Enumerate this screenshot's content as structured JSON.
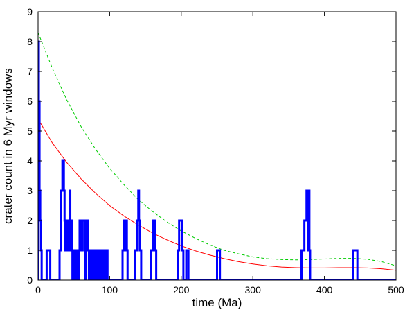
{
  "chart_data": {
    "type": "line",
    "xlabel": "time (Ma)",
    "ylabel": "crater count in 6 Myr windows",
    "xlim": [
      0,
      500
    ],
    "ylim": [
      0,
      9
    ],
    "xticks": [
      0,
      100,
      200,
      300,
      400,
      500
    ],
    "yticks": [
      0,
      1,
      2,
      3,
      4,
      5,
      6,
      7,
      8,
      9
    ],
    "grid": false,
    "series": [
      {
        "style": "step",
        "color": "#0000ff",
        "x": [
          0,
          1,
          2,
          3,
          4,
          5,
          6,
          12,
          14,
          17,
          19,
          30,
          32,
          34,
          35,
          36,
          37,
          38,
          40,
          41,
          42,
          43,
          44,
          45,
          46,
          47,
          48,
          49,
          50,
          52,
          54,
          55,
          56,
          57,
          58,
          60,
          62,
          64,
          65,
          66,
          67,
          68,
          69,
          70,
          71,
          72,
          73,
          74,
          76,
          78,
          80,
          82,
          84,
          86,
          88,
          90,
          92,
          95,
          97,
          100,
          118,
          120,
          121,
          122,
          123,
          124,
          125,
          126,
          135,
          138,
          140,
          141,
          142,
          144,
          146,
          158,
          161,
          163,
          165,
          168,
          195,
          197,
          199,
          201,
          203,
          207,
          210,
          213,
          250,
          252,
          254,
          256,
          368,
          372,
          375,
          377,
          378,
          379,
          380,
          382,
          440,
          442,
          444,
          446,
          448,
          500
        ],
        "y": [
          8,
          6,
          3,
          2,
          1,
          0,
          0,
          1,
          1,
          0,
          0,
          1,
          3,
          4,
          4,
          3,
          2,
          1,
          2,
          1,
          2,
          1,
          3,
          2,
          2,
          1,
          0,
          1,
          0,
          1,
          0,
          1,
          0,
          1,
          2,
          1,
          2,
          2,
          1,
          0,
          2,
          1,
          2,
          1,
          0,
          1,
          0,
          1,
          0,
          1,
          0,
          1,
          0,
          1,
          0,
          1,
          0,
          1,
          0,
          0,
          1,
          2,
          2,
          1,
          2,
          1,
          0,
          0,
          1,
          2,
          3,
          2,
          1,
          0,
          0,
          1,
          2,
          1,
          0,
          0,
          1,
          2,
          2,
          1,
          0,
          1,
          0,
          0,
          1,
          1,
          0,
          0,
          1,
          2,
          3,
          1,
          3,
          1,
          0,
          0,
          1,
          1,
          1,
          0,
          0,
          0
        ]
      },
      {
        "style": "line",
        "color": "#ff0000",
        "x": [
          0,
          20,
          40,
          60,
          80,
          100,
          120,
          140,
          160,
          180,
          200,
          220,
          240,
          260,
          280,
          300,
          320,
          340,
          360,
          380,
          400,
          420,
          440,
          460,
          480,
          500
        ],
        "y": [
          5.4,
          4.6,
          3.95,
          3.4,
          2.92,
          2.5,
          2.15,
          1.85,
          1.58,
          1.35,
          1.15,
          0.98,
          0.84,
          0.72,
          0.62,
          0.54,
          0.48,
          0.44,
          0.42,
          0.41,
          0.41,
          0.42,
          0.42,
          0.41,
          0.38,
          0.33
        ]
      },
      {
        "style": "dashed",
        "color": "#00cc00",
        "x": [
          0,
          20,
          40,
          60,
          80,
          100,
          120,
          140,
          160,
          180,
          200,
          220,
          240,
          260,
          280,
          300,
          320,
          340,
          360,
          380,
          400,
          420,
          440,
          460,
          480,
          500
        ],
        "y": [
          8.3,
          7.1,
          6.05,
          5.15,
          4.4,
          3.75,
          3.2,
          2.7,
          2.3,
          1.95,
          1.65,
          1.4,
          1.18,
          1.0,
          0.88,
          0.78,
          0.72,
          0.69,
          0.68,
          0.69,
          0.71,
          0.73,
          0.73,
          0.7,
          0.62,
          0.48
        ]
      }
    ]
  }
}
